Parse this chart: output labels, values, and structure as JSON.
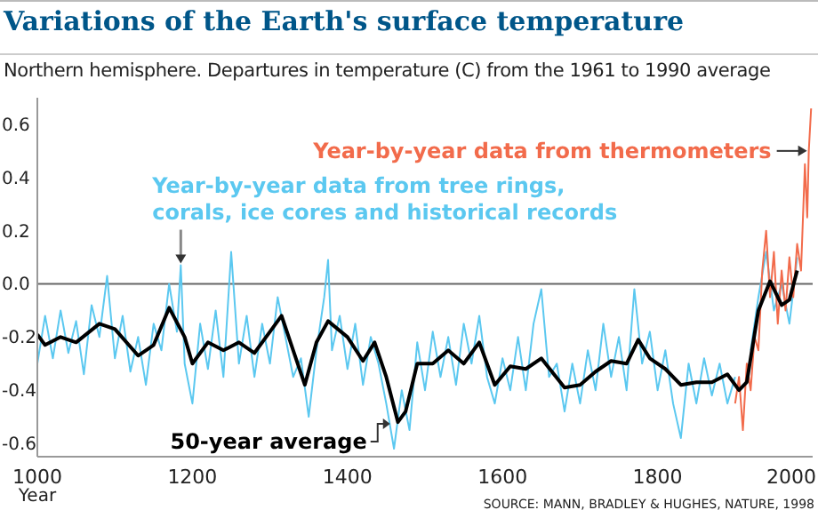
{
  "chart_data": {
    "type": "line",
    "title": "Variations of the Earth's surface temperature",
    "subtitle": "Northern hemisphere. Departures in temperature (C) from the 1961 to 1990 average",
    "xlabel": "Year",
    "xlim": [
      1000,
      2000
    ],
    "xticks": [
      1000,
      1200,
      1400,
      1600,
      1800,
      2000
    ],
    "ylim": [
      -0.65,
      0.7
    ],
    "yticks": [
      {
        "value": -0.6,
        "label": "-0.6"
      },
      {
        "value": -0.4,
        "label": "-0.4"
      },
      {
        "value": -0.2,
        "label": "-0.2"
      },
      {
        "value": 0,
        "label": "0.0"
      },
      {
        "value": 0.2,
        "label": "0.2"
      },
      {
        "value": 0.4,
        "label": "0.4"
      },
      {
        "value": 0.6,
        "label": "0.6"
      }
    ],
    "grid": false,
    "legend": false,
    "marker": "none",
    "line_style": "solid",
    "ref_lines": [
      {
        "axis": "y",
        "value": 0,
        "color": "#666666"
      }
    ],
    "annotations": [
      {
        "text": "Year-by-year data from tree rings,\ncorals, ice cores and historical records",
        "x": 1185,
        "y": 0.07
      },
      {
        "text": "Year-by-year data from thermometers",
        "x": 1995,
        "y": 0.5
      },
      {
        "text": "50-year average",
        "x": 1455,
        "y": -0.5
      },
      "SOURCE: MANN, BRADLEY & HUGHES, NATURE, 1998"
    ],
    "series": [
      {
        "color": "#5bc8f0",
        "x": [
          1000,
          1010,
          1020,
          1030,
          1040,
          1050,
          1060,
          1070,
          1080,
          1090,
          1100,
          1110,
          1120,
          1130,
          1140,
          1150,
          1160,
          1170,
          1180,
          1185,
          1190,
          1200,
          1210,
          1220,
          1230,
          1240,
          1250,
          1260,
          1270,
          1280,
          1290,
          1300,
          1310,
          1320,
          1330,
          1340,
          1350,
          1360,
          1370,
          1375,
          1380,
          1390,
          1400,
          1410,
          1420,
          1430,
          1440,
          1450,
          1460,
          1470,
          1480,
          1490,
          1500,
          1510,
          1520,
          1530,
          1540,
          1550,
          1560,
          1570,
          1580,
          1590,
          1600,
          1610,
          1620,
          1630,
          1640,
          1650,
          1660,
          1670,
          1680,
          1690,
          1700,
          1710,
          1720,
          1730,
          1740,
          1750,
          1760,
          1770,
          1780,
          1790,
          1800,
          1810,
          1820,
          1830,
          1840,
          1850,
          1860,
          1870,
          1880,
          1890,
          1900,
          1910,
          1920,
          1930,
          1940,
          1950,
          1960,
          1970,
          1980
        ],
        "values": [
          -0.3,
          -0.12,
          -0.28,
          -0.1,
          -0.26,
          -0.14,
          -0.34,
          -0.08,
          -0.2,
          0.03,
          -0.28,
          -0.12,
          -0.33,
          -0.2,
          -0.38,
          -0.15,
          -0.25,
          0.0,
          -0.18,
          0.07,
          -0.3,
          -0.45,
          -0.15,
          -0.32,
          -0.1,
          -0.35,
          0.12,
          -0.3,
          -0.12,
          -0.35,
          -0.15,
          -0.3,
          -0.05,
          -0.2,
          -0.35,
          -0.28,
          -0.5,
          -0.25,
          -0.05,
          0.09,
          -0.25,
          -0.12,
          -0.32,
          -0.15,
          -0.38,
          -0.2,
          -0.3,
          -0.45,
          -0.62,
          -0.4,
          -0.55,
          -0.22,
          -0.4,
          -0.18,
          -0.35,
          -0.2,
          -0.38,
          -0.15,
          -0.3,
          -0.12,
          -0.35,
          -0.45,
          -0.28,
          -0.4,
          -0.2,
          -0.4,
          -0.15,
          -0.02,
          -0.35,
          -0.3,
          -0.48,
          -0.3,
          -0.45,
          -0.25,
          -0.4,
          -0.15,
          -0.35,
          -0.2,
          -0.4,
          -0.02,
          -0.3,
          -0.18,
          -0.4,
          -0.25,
          -0.45,
          -0.58,
          -0.3,
          -0.45,
          -0.28,
          -0.42,
          -0.3,
          -0.45,
          -0.35,
          null,
          -0.25,
          -0.05,
          0.12,
          -0.1,
          0.0,
          -0.15,
          0.1
        ]
      },
      {
        "color": "#f26b4b",
        "x": [
          1900,
          1905,
          1910,
          1915,
          1920,
          1925,
          1930,
          1935,
          1940,
          1945,
          1950,
          1955,
          1960,
          1965,
          1970,
          1975,
          1980,
          1985,
          1990,
          1993,
          1995,
          1998
        ],
        "values": [
          -0.45,
          -0.35,
          -0.55,
          -0.3,
          -0.4,
          -0.2,
          -0.25,
          0.05,
          0.2,
          -0.05,
          0.12,
          -0.15,
          0.05,
          -0.1,
          0.1,
          -0.05,
          0.15,
          0.05,
          0.45,
          0.25,
          0.5,
          0.66
        ]
      },
      {
        "color": "#000000",
        "x": [
          1000,
          1010,
          1030,
          1050,
          1080,
          1100,
          1130,
          1150,
          1170,
          1190,
          1200,
          1220,
          1240,
          1260,
          1280,
          1300,
          1315,
          1330,
          1345,
          1360,
          1375,
          1400,
          1420,
          1435,
          1450,
          1465,
          1475,
          1490,
          1510,
          1530,
          1550,
          1570,
          1590,
          1610,
          1630,
          1650,
          1680,
          1700,
          1720,
          1740,
          1760,
          1775,
          1790,
          1810,
          1830,
          1850,
          1870,
          1890,
          1905,
          1915,
          1930,
          1945,
          1960,
          1970,
          1980
        ],
        "values": [
          -0.19,
          -0.23,
          -0.2,
          -0.22,
          -0.15,
          -0.17,
          -0.27,
          -0.23,
          -0.09,
          -0.2,
          -0.3,
          -0.22,
          -0.25,
          -0.22,
          -0.26,
          -0.18,
          -0.12,
          -0.25,
          -0.38,
          -0.22,
          -0.14,
          -0.2,
          -0.29,
          -0.22,
          -0.35,
          -0.52,
          -0.48,
          -0.3,
          -0.3,
          -0.25,
          -0.3,
          -0.22,
          -0.38,
          -0.31,
          -0.32,
          -0.28,
          -0.39,
          -0.38,
          -0.33,
          -0.29,
          -0.3,
          -0.21,
          -0.28,
          -0.32,
          -0.38,
          -0.37,
          -0.37,
          -0.34,
          -0.4,
          -0.37,
          -0.1,
          0.01,
          -0.08,
          -0.06,
          0.05
        ]
      }
    ]
  }
}
